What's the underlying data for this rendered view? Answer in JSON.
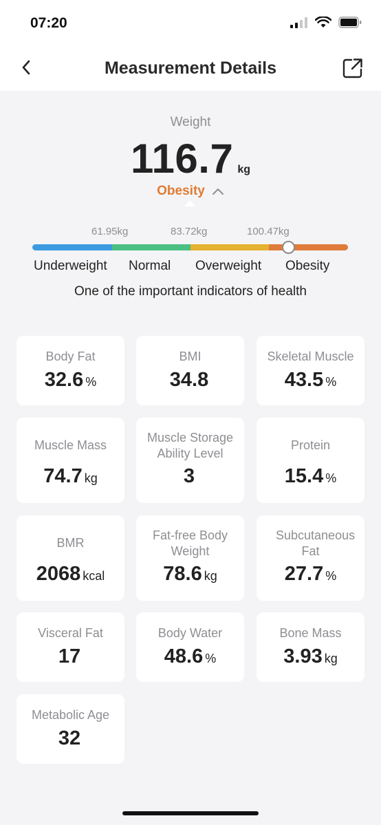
{
  "status_bar": {
    "time": "07:20"
  },
  "header": {
    "title": "Measurement Details"
  },
  "weight": {
    "label": "Weight",
    "value": "116.7",
    "unit": "kg",
    "status": "Obesity",
    "status_color": "#e07b32"
  },
  "scale": {
    "thresholds": [
      "61.95kg",
      "83.72kg",
      "100.47kg"
    ],
    "categories": [
      "Underweight",
      "Normal",
      "Overweight",
      "Obesity"
    ],
    "colors": [
      "#3c9ae0",
      "#4cbf82",
      "#e5b130",
      "#e07b3b"
    ],
    "hint": "One of the important indicators of health"
  },
  "metrics": [
    {
      "label": "Body Fat",
      "value": "32.6",
      "unit": "%"
    },
    {
      "label": "BMI",
      "value": "34.8",
      "unit": ""
    },
    {
      "label": "Skeletal Muscle",
      "value": "43.5",
      "unit": "%"
    },
    {
      "label": "Muscle Mass",
      "value": "74.7",
      "unit": "kg"
    },
    {
      "label": "Muscle Storage Ability Level",
      "value": "3",
      "unit": ""
    },
    {
      "label": "Protein",
      "value": "15.4",
      "unit": "%"
    },
    {
      "label": "BMR",
      "value": "2068",
      "unit": "kcal"
    },
    {
      "label": "Fat-free Body Weight",
      "value": "78.6",
      "unit": "kg"
    },
    {
      "label": "Subcutaneous Fat",
      "value": "27.7",
      "unit": "%"
    },
    {
      "label": "Visceral Fat",
      "value": "17",
      "unit": ""
    },
    {
      "label": "Body Water",
      "value": "48.6",
      "unit": "%"
    },
    {
      "label": "Bone Mass",
      "value": "3.93",
      "unit": "kg"
    },
    {
      "label": "Metabolic Age",
      "value": "32",
      "unit": ""
    }
  ]
}
